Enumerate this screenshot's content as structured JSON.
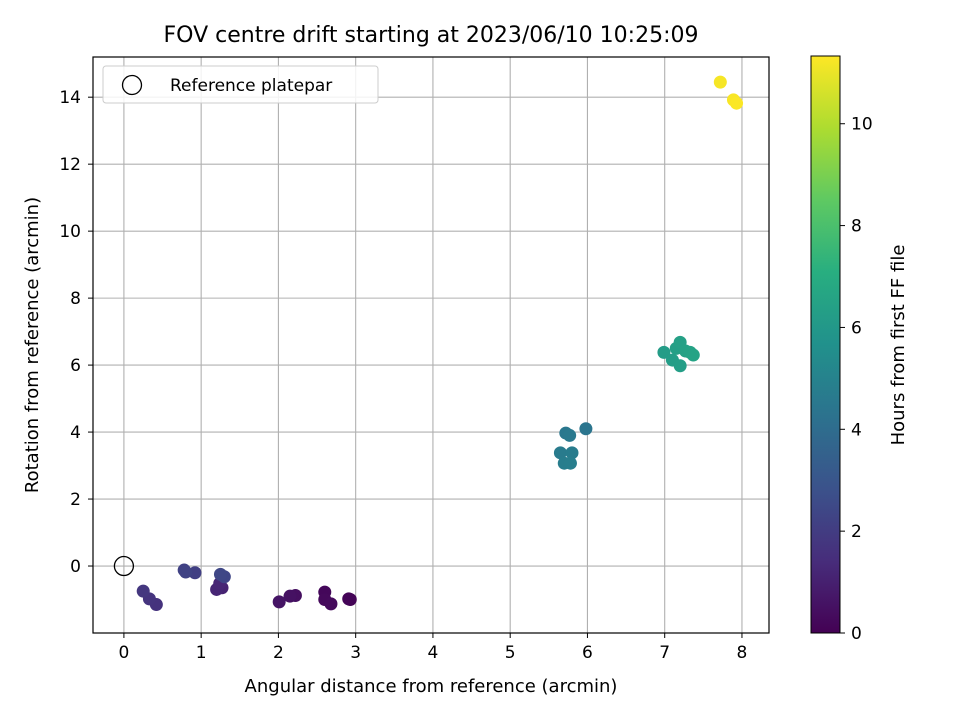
{
  "chart_data": {
    "type": "scatter",
    "title": "FOV centre drift starting at 2023/06/10 10:25:09",
    "xlabel": "Angular distance from reference (arcmin)",
    "ylabel": "Rotation from reference (arcmin)",
    "xlim": [
      -0.4,
      8.35
    ],
    "ylim": [
      -2.0,
      15.2
    ],
    "xticks": [
      0,
      1,
      2,
      3,
      4,
      5,
      6,
      7,
      8
    ],
    "yticks": [
      0,
      2,
      4,
      6,
      8,
      10,
      12,
      14
    ],
    "grid": true,
    "legend": {
      "position": "top-left",
      "entries": [
        "Reference platepar"
      ]
    },
    "colorbar": {
      "label": "Hours from first FF file",
      "colormap": "viridis",
      "range": [
        0,
        11.33
      ],
      "ticks": [
        0,
        2,
        4,
        6,
        8,
        10
      ]
    },
    "reference_point": {
      "x": 0,
      "y": 0
    },
    "points": [
      {
        "x": 2.93,
        "y": -1.0,
        "hours": 0.05
      },
      {
        "x": 2.91,
        "y": -0.98,
        "hours": 0.1
      },
      {
        "x": 2.6,
        "y": -0.78,
        "hours": 0.2
      },
      {
        "x": 2.6,
        "y": -1.0,
        "hours": 0.25
      },
      {
        "x": 2.68,
        "y": -1.13,
        "hours": 0.3
      },
      {
        "x": 2.22,
        "y": -0.88,
        "hours": 0.45
      },
      {
        "x": 2.15,
        "y": -0.9,
        "hours": 0.5
      },
      {
        "x": 2.01,
        "y": -1.07,
        "hours": 0.6
      },
      {
        "x": 1.27,
        "y": -0.65,
        "hours": 1.1
      },
      {
        "x": 1.2,
        "y": -0.7,
        "hours": 1.15
      },
      {
        "x": 1.24,
        "y": -0.52,
        "hours": 1.2
      },
      {
        "x": 0.42,
        "y": -1.15,
        "hours": 1.6
      },
      {
        "x": 0.33,
        "y": -0.98,
        "hours": 1.7
      },
      {
        "x": 0.25,
        "y": -0.75,
        "hours": 1.8
      },
      {
        "x": 0.92,
        "y": -0.2,
        "hours": 2.1
      },
      {
        "x": 0.78,
        "y": -0.12,
        "hours": 2.2
      },
      {
        "x": 0.8,
        "y": -0.18,
        "hours": 2.25
      },
      {
        "x": 1.3,
        "y": -0.32,
        "hours": 2.35
      },
      {
        "x": 1.25,
        "y": -0.25,
        "hours": 2.4
      },
      {
        "x": 5.98,
        "y": 4.1,
        "hours": 4.4
      },
      {
        "x": 5.72,
        "y": 3.97,
        "hours": 4.5
      },
      {
        "x": 5.77,
        "y": 3.9,
        "hours": 4.55
      },
      {
        "x": 5.65,
        "y": 3.38,
        "hours": 4.65
      },
      {
        "x": 5.8,
        "y": 3.38,
        "hours": 4.7
      },
      {
        "x": 5.7,
        "y": 3.07,
        "hours": 4.75
      },
      {
        "x": 5.78,
        "y": 3.07,
        "hours": 4.8
      },
      {
        "x": 6.99,
        "y": 6.38,
        "hours": 6.2
      },
      {
        "x": 7.1,
        "y": 6.15,
        "hours": 6.25
      },
      {
        "x": 7.2,
        "y": 5.98,
        "hours": 6.3
      },
      {
        "x": 7.15,
        "y": 6.5,
        "hours": 6.35
      },
      {
        "x": 7.2,
        "y": 6.68,
        "hours": 6.4
      },
      {
        "x": 7.27,
        "y": 6.42,
        "hours": 6.45
      },
      {
        "x": 7.33,
        "y": 6.38,
        "hours": 6.5
      },
      {
        "x": 7.37,
        "y": 6.3,
        "hours": 6.55
      },
      {
        "x": 7.72,
        "y": 14.45,
        "hours": 11.2
      },
      {
        "x": 7.89,
        "y": 13.92,
        "hours": 11.25
      },
      {
        "x": 7.93,
        "y": 13.82,
        "hours": 11.3
      }
    ]
  }
}
